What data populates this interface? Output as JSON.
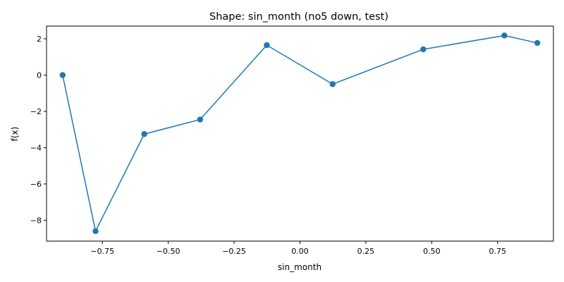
{
  "chart_data": {
    "type": "line",
    "title": "Shape: sin_month (no5 down, test)",
    "xlabel": "sin_month",
    "ylabel": "f(x)",
    "xlim": [
      -0.962,
      0.962
    ],
    "ylim": [
      -9.15,
      2.7
    ],
    "xticks": [
      -0.75,
      -0.5,
      -0.25,
      0.0,
      0.25,
      0.5,
      0.75
    ],
    "xtick_labels": [
      "−0.75",
      "−0.50",
      "−0.25",
      "0.00",
      "0.25",
      "0.50",
      "0.75"
    ],
    "yticks": [
      -8,
      -6,
      -4,
      -2,
      0,
      2
    ],
    "ytick_labels": [
      "−8",
      "−6",
      "−4",
      "−2",
      "0",
      "2"
    ],
    "grid": false,
    "markers": true,
    "series": [
      {
        "color": "#1f77b4",
        "x": [
          -0.901,
          -0.776,
          -0.591,
          -0.379,
          -0.126,
          0.124,
          0.468,
          0.776,
          0.901
        ],
        "y": [
          0.0,
          -8.6,
          -3.25,
          -2.45,
          1.65,
          -0.5,
          1.42,
          2.18,
          1.77
        ]
      }
    ]
  }
}
